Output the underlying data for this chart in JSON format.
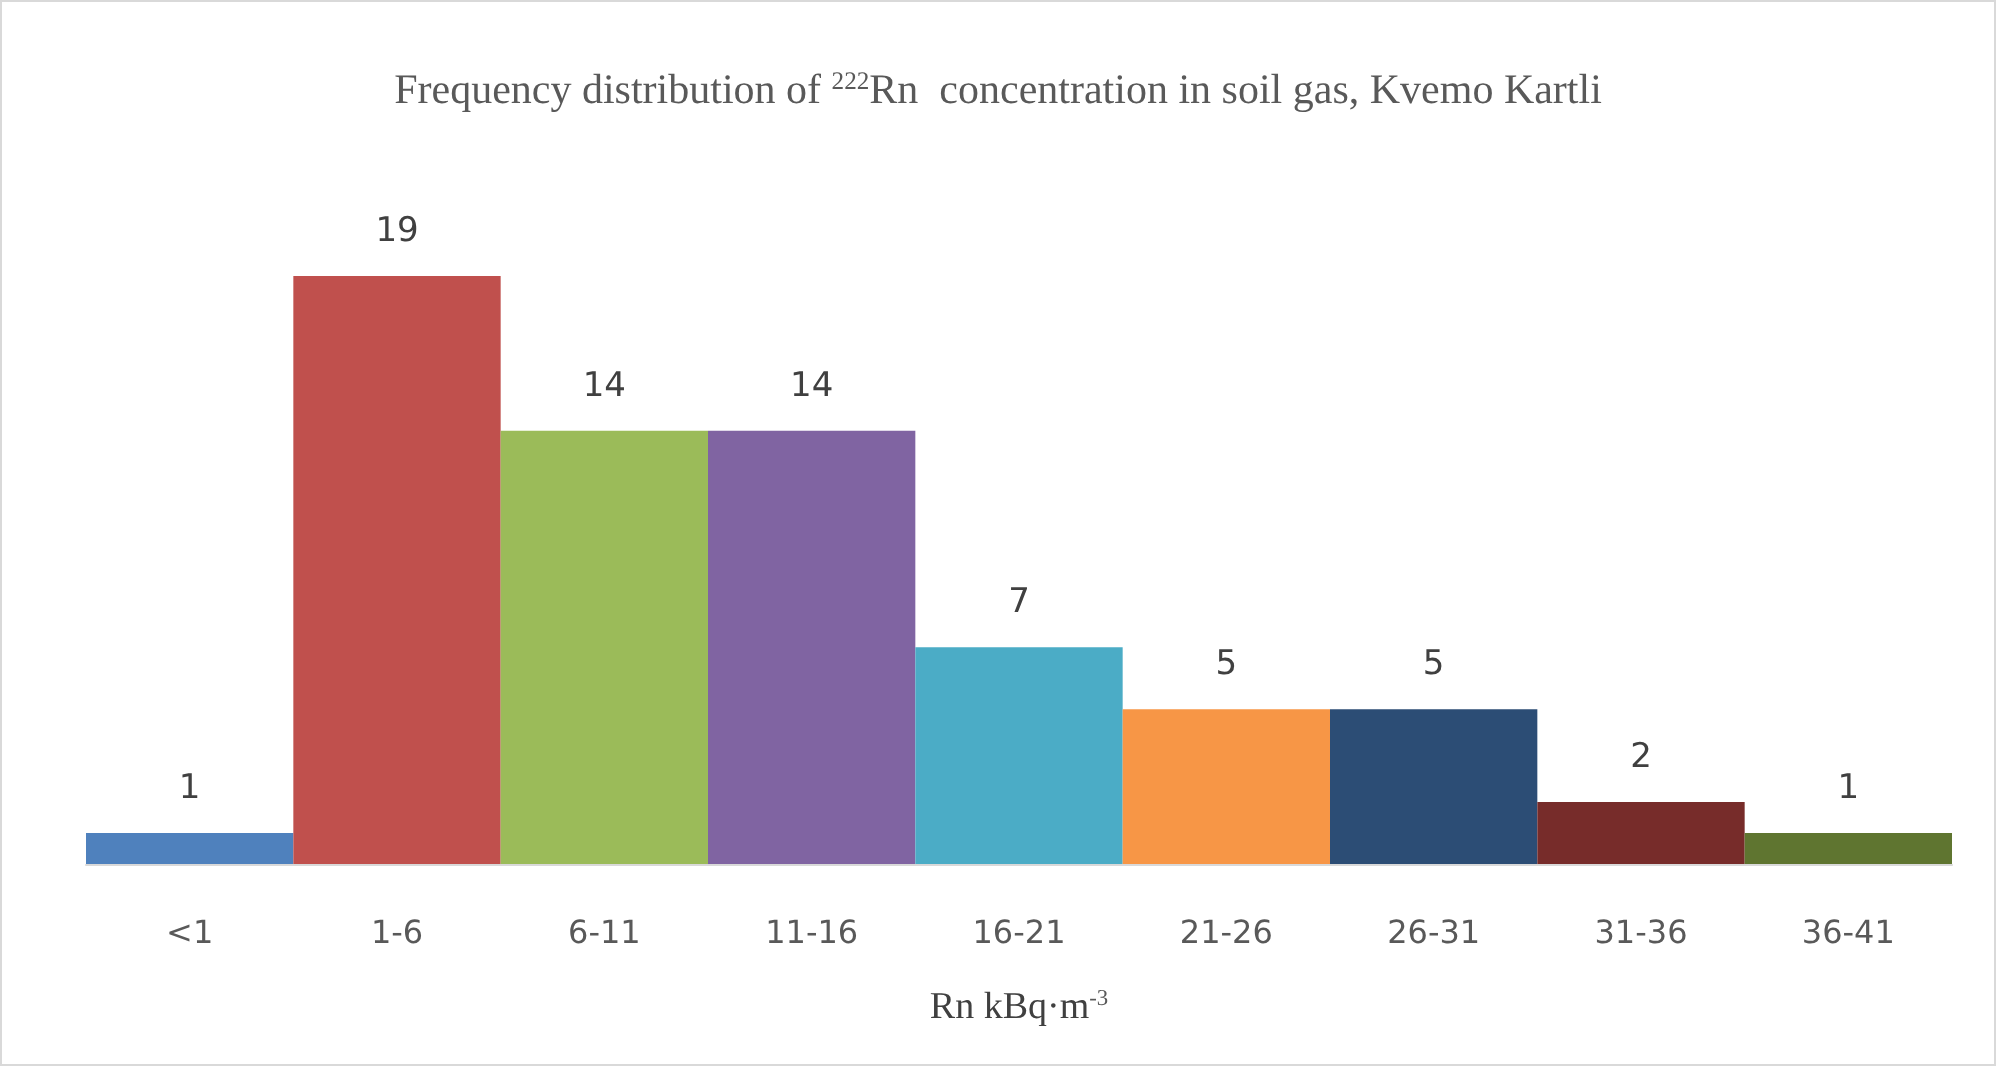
{
  "chart_data": {
    "type": "bar",
    "title": "Frequency distribution of $^{222}$Rn  concentration in soil gas, Kvemo Kartli",
    "xlabel": "Rn kBq·m$^{-3}$",
    "categories": [
      "<1",
      "1-6",
      "6-11",
      "11-16",
      "16-21",
      "21-26",
      "26-31",
      "31-36",
      "36-41"
    ],
    "values": [
      1,
      19,
      14,
      14,
      7,
      5,
      5,
      2,
      1
    ],
    "colors": [
      "#4f81bd",
      "#c0504d",
      "#9bbb59",
      "#8064a2",
      "#4bacc6",
      "#f79646",
      "#2c4d75",
      "#772c2a",
      "#5f7530"
    ],
    "data_labels": true
  }
}
